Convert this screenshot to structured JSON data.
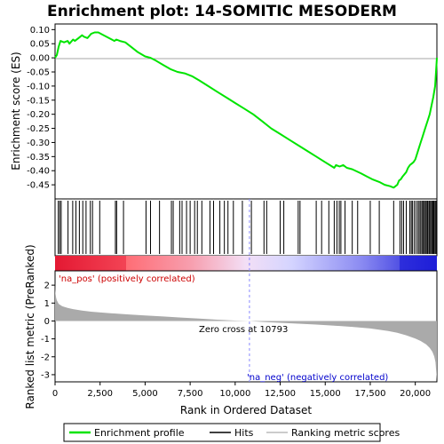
{
  "chart_data": {
    "type": "line",
    "title": "Enrichment plot: 14-SOMITIC MESODERM",
    "top_panel": {
      "ylabel": "Enrichment score (ES)",
      "ylim": [
        -0.5,
        0.12
      ],
      "yticks": [
        "0.10",
        "0.05",
        "0.00",
        "-0.05",
        "-0.10",
        "-0.15",
        "-0.20",
        "-0.25",
        "-0.30",
        "-0.35",
        "-0.40",
        "-0.45"
      ],
      "yticks_values": [
        0.1,
        0.05,
        0.0,
        -0.05,
        -0.1,
        -0.15,
        -0.2,
        -0.25,
        -0.3,
        -0.35,
        -0.4,
        -0.45
      ],
      "series_name": "Enrichment profile",
      "color": "#00e400",
      "x": [
        0,
        100,
        200,
        300,
        500,
        700,
        800,
        1000,
        1100,
        1300,
        1500,
        1600,
        1800,
        2000,
        2200,
        2400,
        2700,
        3000,
        3300,
        3400,
        3600,
        3900,
        4200,
        4600,
        5000,
        5300,
        5600,
        6000,
        6400,
        6800,
        7200,
        7600,
        8000,
        8500,
        9000,
        9500,
        10000,
        10500,
        11000,
        11500,
        12000,
        12500,
        13000,
        13500,
        14000,
        14500,
        15000,
        15500,
        15600,
        15800,
        16000,
        16200,
        16500,
        17000,
        17300,
        17600,
        18000,
        18300,
        18600,
        18800,
        19000,
        19100,
        19200,
        19300,
        19500,
        19600,
        19700,
        19800,
        19900,
        20000,
        20100,
        20200,
        20300,
        20400,
        20500,
        20600,
        20700,
        20800,
        20900,
        21000,
        21100,
        21150,
        21200
      ],
      "y": [
        0.0,
        0.01,
        0.04,
        0.06,
        0.055,
        0.06,
        0.05,
        0.065,
        0.06,
        0.07,
        0.08,
        0.075,
        0.07,
        0.085,
        0.09,
        0.09,
        0.08,
        0.07,
        0.06,
        0.065,
        0.06,
        0.055,
        0.04,
        0.02,
        0.005,
        0.0,
        -0.01,
        -0.025,
        -0.04,
        -0.05,
        -0.055,
        -0.065,
        -0.08,
        -0.1,
        -0.12,
        -0.14,
        -0.16,
        -0.18,
        -0.2,
        -0.225,
        -0.25,
        -0.27,
        -0.29,
        -0.31,
        -0.33,
        -0.35,
        -0.37,
        -0.39,
        -0.38,
        -0.385,
        -0.38,
        -0.39,
        -0.395,
        -0.41,
        -0.42,
        -0.43,
        -0.44,
        -0.45,
        -0.455,
        -0.46,
        -0.45,
        -0.435,
        -0.43,
        -0.42,
        -0.405,
        -0.39,
        -0.38,
        -0.375,
        -0.37,
        -0.36,
        -0.34,
        -0.32,
        -0.3,
        -0.28,
        -0.26,
        -0.24,
        -0.22,
        -0.2,
        -0.17,
        -0.14,
        -0.1,
        -0.05,
        0.0
      ]
    },
    "hits": [
      180,
      260,
      340,
      720,
      980,
      1160,
      1350,
      1540,
      1720,
      1960,
      2080,
      2480,
      3350,
      3420,
      3800,
      5050,
      5300,
      5800,
      6460,
      6560,
      6920,
      7050,
      7300,
      7500,
      7750,
      7900,
      8150,
      8600,
      8800,
      9150,
      9400,
      9600,
      9900,
      10400,
      10900,
      11600,
      11750,
      12500,
      12700,
      13500,
      13600,
      14500,
      14800,
      15200,
      15500,
      15650,
      15780,
      15870,
      16100,
      16500,
      16800,
      17500,
      18000,
      18800,
      19150,
      19250,
      19350,
      19500,
      19700,
      19780,
      19850,
      19950,
      20050,
      20150,
      20220,
      20300,
      20370,
      20430,
      20500,
      20560,
      20620,
      20680,
      20750,
      20800,
      20860,
      20920,
      20980,
      21030,
      21090,
      21140,
      21180
    ],
    "bottom_panel": {
      "ylabel": "Ranked list metric (PreRanked)",
      "ylim": [
        -3.4,
        2.8
      ],
      "yticks": [
        "2",
        "1",
        "0",
        "-1",
        "-2",
        "-3"
      ],
      "yticks_values": [
        2,
        1,
        0,
        -1,
        -2,
        -3
      ],
      "rank_x": [
        0,
        10,
        30,
        60,
        100,
        200,
        400,
        700,
        1000,
        1500,
        2000,
        3000,
        4000,
        5000,
        6000,
        7000,
        8000,
        9000,
        10000,
        10793,
        11500,
        12500,
        13500,
        14500,
        15500,
        16500,
        17500,
        18500,
        19000,
        19500,
        20000,
        20300,
        20600,
        20800,
        20950,
        21050,
        21120,
        21160,
        21200
      ],
      "rank_y": [
        2.2,
        1.75,
        1.5,
        1.3,
        1.15,
        0.95,
        0.82,
        0.73,
        0.66,
        0.58,
        0.52,
        0.44,
        0.37,
        0.31,
        0.25,
        0.19,
        0.13,
        0.07,
        0.02,
        0.0,
        -0.05,
        -0.1,
        -0.15,
        -0.2,
        -0.26,
        -0.33,
        -0.42,
        -0.56,
        -0.66,
        -0.8,
        -0.98,
        -1.12,
        -1.3,
        -1.5,
        -1.72,
        -1.98,
        -2.3,
        -2.8,
        -3.3
      ],
      "zero_cross_label": "Zero cross at 10793",
      "zero_cross": 10793
    },
    "xlabel": "Rank in Ordered Dataset",
    "xlim": [
      0,
      21200
    ],
    "xticks": [
      "0",
      "2,500",
      "5,000",
      "7,500",
      "10,000",
      "12,500",
      "15,000",
      "17,500",
      "20,000"
    ],
    "xticks_values": [
      0,
      2500,
      5000,
      7500,
      10000,
      12500,
      15000,
      17500,
      20000
    ],
    "pos_label": "'na_pos' (positively correlated)",
    "neg_label": "'na_neg' (negatively correlated)",
    "legend": {
      "placement": "bottom",
      "items": [
        {
          "label": "Enrichment profile",
          "color": "#00e400"
        },
        {
          "label": "Hits",
          "color": "#000000"
        },
        {
          "label": "Ranking metric scores",
          "color": "#bbbbbb"
        }
      ]
    },
    "colors": {
      "profile": "#00e400",
      "hits": "#000000",
      "metric_fill": "#aaaaaa",
      "pos_text": "#cc0000",
      "neg_text": "#0000cc",
      "zero_line": "#8888ff"
    }
  }
}
